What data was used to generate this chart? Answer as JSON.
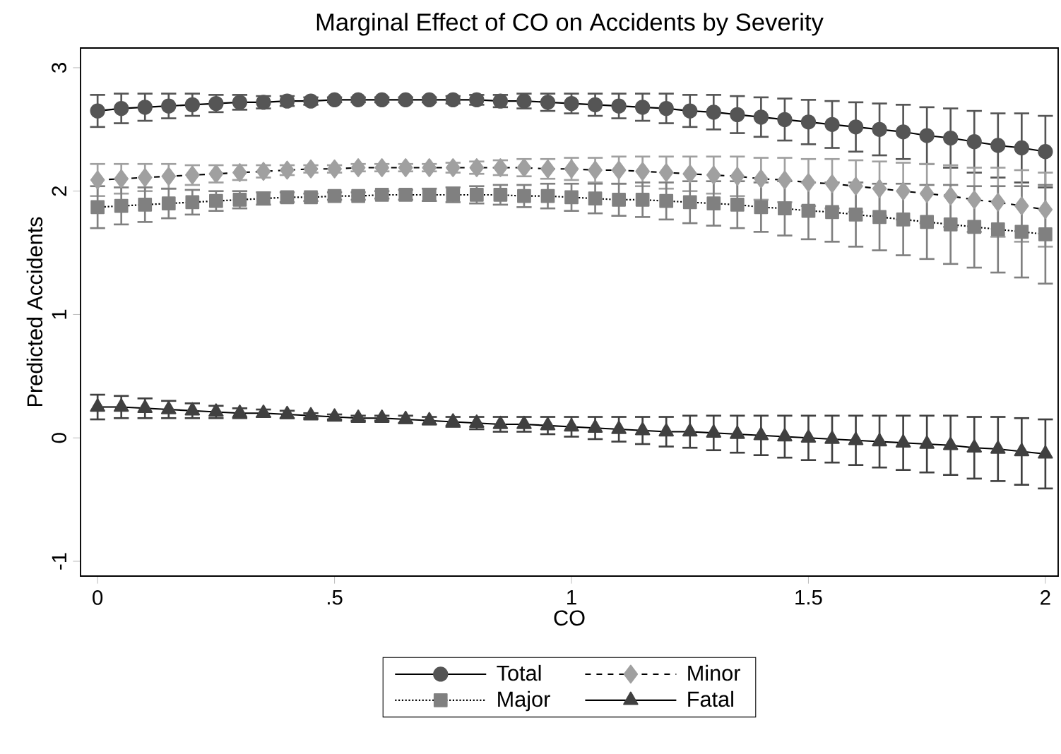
{
  "chart_data": {
    "type": "line",
    "title": "Marginal Effect of CO on Accidents by Severity",
    "xlabel": "CO",
    "ylabel": "Predicted Accidents",
    "x": [
      0,
      0.05,
      0.1,
      0.15,
      0.2,
      0.25,
      0.3,
      0.35,
      0.4,
      0.45,
      0.5,
      0.55,
      0.6,
      0.65,
      0.7,
      0.75,
      0.8,
      0.85,
      0.9,
      0.95,
      1,
      1.05,
      1.1,
      1.15,
      1.2,
      1.25,
      1.3,
      1.35,
      1.4,
      1.45,
      1.5,
      1.55,
      1.6,
      1.65,
      1.7,
      1.75,
      1.8,
      1.85,
      1.9,
      1.95,
      2
    ],
    "series": [
      {
        "name": "Total",
        "color": "#555555",
        "marker": "circle",
        "line_style": "solid",
        "values": [
          2.65,
          2.67,
          2.68,
          2.69,
          2.7,
          2.71,
          2.72,
          2.72,
          2.73,
          2.73,
          2.74,
          2.74,
          2.74,
          2.74,
          2.74,
          2.74,
          2.74,
          2.73,
          2.73,
          2.72,
          2.71,
          2.7,
          2.69,
          2.68,
          2.67,
          2.65,
          2.64,
          2.62,
          2.6,
          2.58,
          2.56,
          2.54,
          2.52,
          2.5,
          2.48,
          2.45,
          2.43,
          2.4,
          2.37,
          2.35,
          2.32
        ],
        "errors": [
          0.13,
          0.12,
          0.11,
          0.1,
          0.09,
          0.07,
          0.06,
          0.05,
          0.04,
          0.03,
          0.02,
          0.02,
          0.02,
          0.02,
          0.02,
          0.03,
          0.04,
          0.05,
          0.06,
          0.07,
          0.08,
          0.09,
          0.1,
          0.11,
          0.12,
          0.13,
          0.14,
          0.15,
          0.16,
          0.17,
          0.18,
          0.19,
          0.2,
          0.21,
          0.22,
          0.23,
          0.24,
          0.25,
          0.26,
          0.28,
          0.29
        ]
      },
      {
        "name": "Minor",
        "color": "#a0a0a0",
        "marker": "diamond",
        "line_style": "dashed",
        "values": [
          2.09,
          2.1,
          2.11,
          2.12,
          2.13,
          2.14,
          2.15,
          2.16,
          2.17,
          2.18,
          2.18,
          2.19,
          2.19,
          2.19,
          2.19,
          2.19,
          2.19,
          2.19,
          2.19,
          2.18,
          2.18,
          2.17,
          2.17,
          2.16,
          2.15,
          2.14,
          2.13,
          2.12,
          2.1,
          2.09,
          2.07,
          2.06,
          2.04,
          2.02,
          2.0,
          1.98,
          1.96,
          1.93,
          1.91,
          1.88,
          1.85
        ],
        "errors": [
          0.13,
          0.12,
          0.11,
          0.1,
          0.08,
          0.07,
          0.06,
          0.05,
          0.04,
          0.03,
          0.03,
          0.03,
          0.03,
          0.03,
          0.03,
          0.04,
          0.05,
          0.06,
          0.07,
          0.08,
          0.09,
          0.1,
          0.11,
          0.12,
          0.13,
          0.14,
          0.15,
          0.16,
          0.17,
          0.18,
          0.19,
          0.2,
          0.21,
          0.22,
          0.23,
          0.24,
          0.25,
          0.26,
          0.28,
          0.29,
          0.3
        ]
      },
      {
        "name": "Major",
        "color": "#808080",
        "marker": "square",
        "line_style": "dotted",
        "values": [
          1.87,
          1.88,
          1.89,
          1.9,
          1.91,
          1.92,
          1.93,
          1.94,
          1.95,
          1.95,
          1.96,
          1.96,
          1.97,
          1.97,
          1.97,
          1.97,
          1.97,
          1.97,
          1.96,
          1.96,
          1.95,
          1.94,
          1.93,
          1.93,
          1.92,
          1.91,
          1.9,
          1.89,
          1.87,
          1.86,
          1.84,
          1.83,
          1.81,
          1.79,
          1.77,
          1.75,
          1.73,
          1.71,
          1.69,
          1.67,
          1.65
        ],
        "errors": [
          0.17,
          0.15,
          0.14,
          0.12,
          0.1,
          0.08,
          0.07,
          0.05,
          0.04,
          0.03,
          0.03,
          0.03,
          0.03,
          0.04,
          0.05,
          0.06,
          0.07,
          0.08,
          0.09,
          0.1,
          0.11,
          0.12,
          0.13,
          0.14,
          0.15,
          0.17,
          0.18,
          0.19,
          0.2,
          0.22,
          0.23,
          0.24,
          0.26,
          0.27,
          0.29,
          0.3,
          0.32,
          0.33,
          0.35,
          0.37,
          0.4
        ]
      },
      {
        "name": "Fatal",
        "color": "#404040",
        "marker": "triangle",
        "line_style": "solid",
        "values": [
          0.25,
          0.25,
          0.24,
          0.23,
          0.22,
          0.21,
          0.2,
          0.2,
          0.19,
          0.18,
          0.17,
          0.16,
          0.16,
          0.15,
          0.14,
          0.13,
          0.12,
          0.11,
          0.11,
          0.1,
          0.09,
          0.08,
          0.07,
          0.06,
          0.05,
          0.05,
          0.04,
          0.03,
          0.02,
          0.01,
          0.0,
          -0.01,
          -0.02,
          -0.03,
          -0.04,
          -0.05,
          -0.06,
          -0.08,
          -0.09,
          -0.11,
          -0.13
        ],
        "errors": [
          0.1,
          0.09,
          0.08,
          0.07,
          0.06,
          0.05,
          0.04,
          0.03,
          0.03,
          0.02,
          0.02,
          0.02,
          0.02,
          0.03,
          0.03,
          0.04,
          0.05,
          0.06,
          0.06,
          0.07,
          0.08,
          0.09,
          0.1,
          0.11,
          0.12,
          0.13,
          0.14,
          0.15,
          0.16,
          0.17,
          0.18,
          0.19,
          0.2,
          0.21,
          0.22,
          0.23,
          0.24,
          0.25,
          0.26,
          0.27,
          0.28
        ]
      }
    ],
    "xlim": [
      -0.036,
      2.027
    ],
    "ylim": [
      -1.12,
      3.16
    ],
    "xticks": [
      0,
      {
        "value": 0.5,
        "label": ".5"
      },
      1,
      1.5,
      2
    ],
    "yticks": [
      -1,
      0,
      1,
      2,
      3
    ],
    "grid": false,
    "legend": "bottom"
  }
}
